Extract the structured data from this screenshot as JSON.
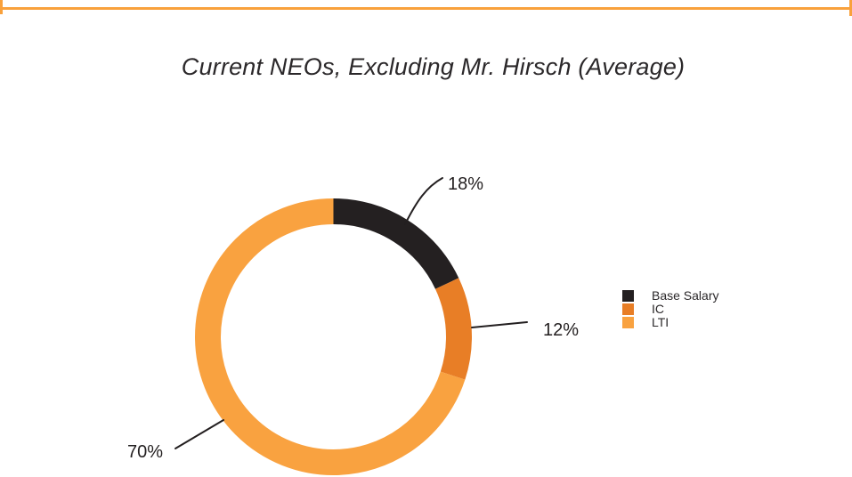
{
  "page": {
    "background_color": "#ffffff",
    "border_color": "#f9a13c"
  },
  "chart_data": {
    "type": "pie",
    "subtype": "donut",
    "title": "Current NEOs, Excluding Mr. Hirsch (Average)",
    "start": "top",
    "direction": "clockwise",
    "legend_position": "right",
    "slices": [
      {
        "name": "Base Salary",
        "value": 18,
        "label": "18%",
        "color": "#242021"
      },
      {
        "name": "IC",
        "value": 12,
        "label": "12%",
        "color": "#e87e26"
      },
      {
        "name": "LTI",
        "value": 70,
        "label": "70%",
        "color": "#f9a240"
      }
    ]
  }
}
